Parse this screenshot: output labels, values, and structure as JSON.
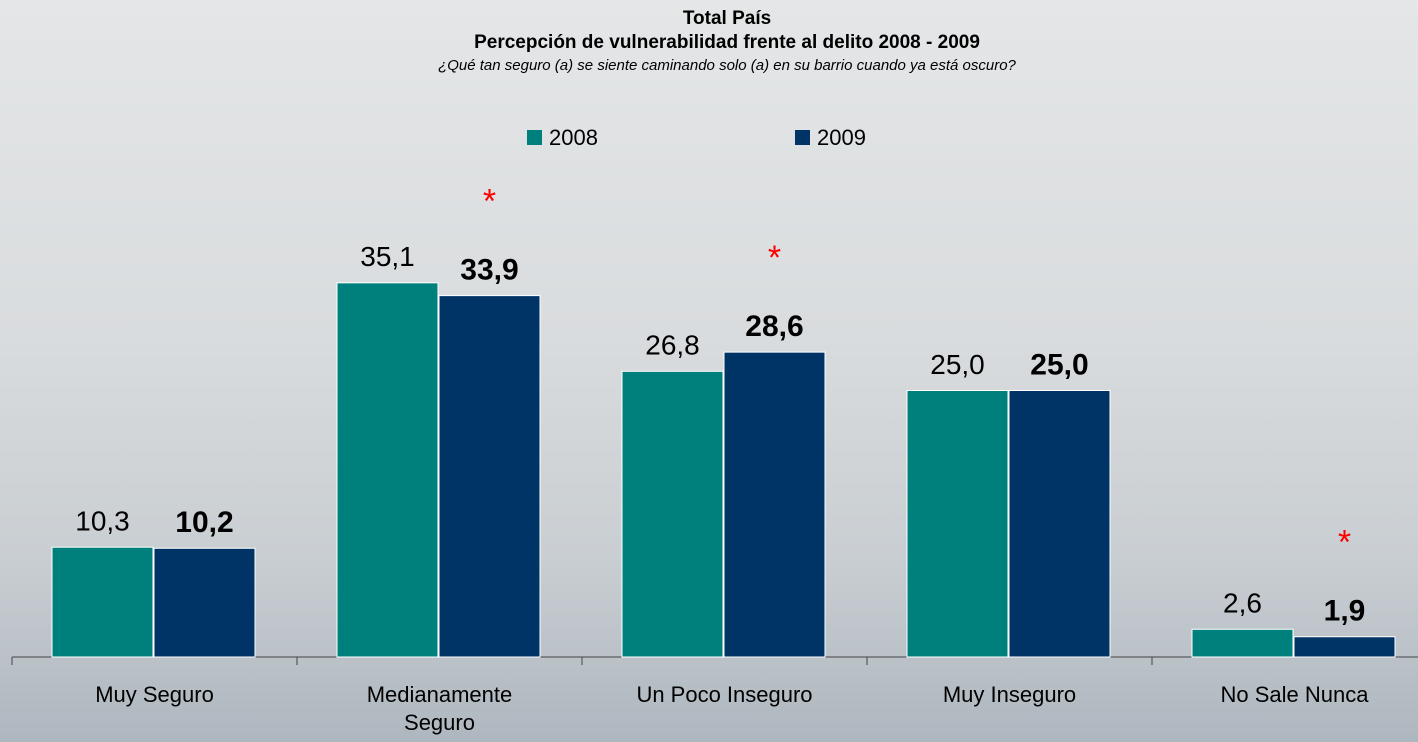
{
  "chart_data": {
    "type": "bar",
    "title": "Total País",
    "subtitle": "Percepción de vulnerabilidad frente al delito 2008 - 2009",
    "question": "¿Qué tan seguro (a) se siente caminando solo (a) en su barrio cuando ya está oscuro?",
    "categories": [
      "Muy Seguro",
      "Medianamente Seguro",
      "Un Poco Inseguro",
      "Muy Inseguro",
      "No Sale Nunca"
    ],
    "series": [
      {
        "name": "2008",
        "color": "#00807c",
        "values": [
          10.3,
          35.1,
          26.8,
          25.0,
          2.6
        ],
        "value_labels": [
          "10,3",
          "35,1",
          "26,8",
          "25,0",
          "2,6"
        ]
      },
      {
        "name": "2009",
        "color": "#003366",
        "values": [
          10.2,
          33.9,
          28.6,
          25.0,
          1.9
        ],
        "value_labels": [
          "10,2",
          "33,9",
          "28,6",
          "25,0",
          "1,9"
        ]
      }
    ],
    "annotations": [
      {
        "text": "*",
        "series": "2009",
        "category": "Medianamente Seguro"
      },
      {
        "text": "*",
        "series": "2009",
        "category": "Un Poco Inseguro"
      },
      {
        "text": "*",
        "series": "2009",
        "category": "No Sale Nunca"
      }
    ],
    "legend": "top"
  }
}
